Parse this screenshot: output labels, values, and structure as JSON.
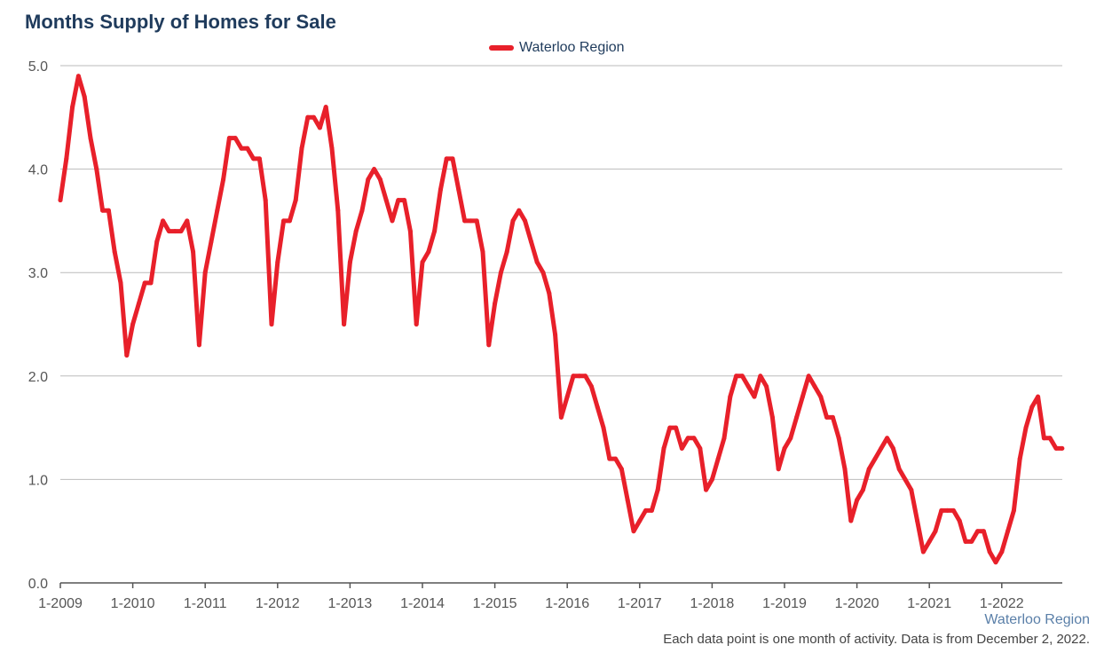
{
  "title": "Months Supply of Homes for Sale",
  "footer": {
    "region": "Waterloo Region",
    "note": "Each data point is one month of activity. Data is from December 2, 2022."
  },
  "colors": {
    "series": "#e8202a",
    "title": "#1f3b5c",
    "grid": "#bbbbbb",
    "axis": "#555555"
  },
  "chart_data": {
    "type": "line",
    "title": "Months Supply of Homes for Sale",
    "xlabel": "",
    "ylabel": "",
    "ylim": [
      0,
      5
    ],
    "yticks": [
      "0.0",
      "1.0",
      "2.0",
      "3.0",
      "4.0",
      "5.0"
    ],
    "xticks": [
      "1-2009",
      "1-2010",
      "1-2011",
      "1-2012",
      "1-2013",
      "1-2014",
      "1-2015",
      "1-2016",
      "1-2017",
      "1-2018",
      "1-2019",
      "1-2020",
      "1-2021",
      "1-2022"
    ],
    "grid": "horizontal",
    "legend_position": "top-center",
    "start": "1-2009",
    "series": [
      {
        "name": "Waterloo Region",
        "color": "#e8202a",
        "values": [
          3.7,
          4.1,
          4.6,
          4.9,
          4.7,
          4.3,
          4.0,
          3.6,
          3.6,
          3.2,
          2.9,
          2.2,
          2.5,
          2.7,
          2.9,
          2.9,
          3.3,
          3.5,
          3.4,
          3.4,
          3.4,
          3.5,
          3.2,
          2.3,
          3.0,
          3.3,
          3.6,
          3.9,
          4.3,
          4.3,
          4.2,
          4.2,
          4.1,
          4.1,
          3.7,
          2.5,
          3.1,
          3.5,
          3.5,
          3.7,
          4.2,
          4.5,
          4.5,
          4.4,
          4.6,
          4.2,
          3.6,
          2.5,
          3.1,
          3.4,
          3.6,
          3.9,
          4.0,
          3.9,
          3.7,
          3.5,
          3.7,
          3.7,
          3.4,
          2.5,
          3.1,
          3.2,
          3.4,
          3.8,
          4.1,
          4.1,
          3.8,
          3.5,
          3.5,
          3.5,
          3.2,
          2.3,
          2.7,
          3.0,
          3.2,
          3.5,
          3.6,
          3.5,
          3.3,
          3.1,
          3.0,
          2.8,
          2.4,
          1.6,
          1.8,
          2.0,
          2.0,
          2.0,
          1.9,
          1.7,
          1.5,
          1.2,
          1.2,
          1.1,
          0.8,
          0.5,
          0.6,
          0.7,
          0.7,
          0.9,
          1.3,
          1.5,
          1.5,
          1.3,
          1.4,
          1.4,
          1.3,
          0.9,
          1.0,
          1.2,
          1.4,
          1.8,
          2.0,
          2.0,
          1.9,
          1.8,
          2.0,
          1.9,
          1.6,
          1.1,
          1.3,
          1.4,
          1.6,
          1.8,
          2.0,
          1.9,
          1.8,
          1.6,
          1.6,
          1.4,
          1.1,
          0.6,
          0.8,
          0.9,
          1.1,
          1.2,
          1.3,
          1.4,
          1.3,
          1.1,
          1.0,
          0.9,
          0.6,
          0.3,
          0.4,
          0.5,
          0.7,
          0.7,
          0.7,
          0.6,
          0.4,
          0.4,
          0.5,
          0.5,
          0.3,
          0.2,
          0.3,
          0.5,
          0.7,
          1.2,
          1.5,
          1.7,
          1.8,
          1.4,
          1.4,
          1.3,
          1.3
        ]
      }
    ]
  }
}
